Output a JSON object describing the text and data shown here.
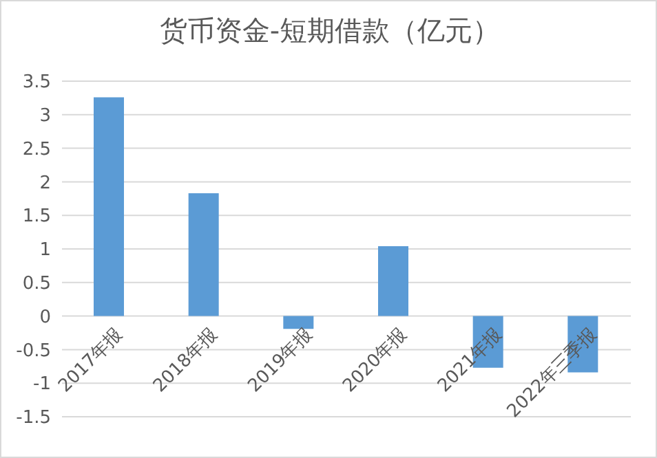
{
  "chart_data": {
    "type": "bar",
    "title": "货币资金-短期借款（亿元）",
    "categories": [
      "2017年报",
      "2018年报",
      "2019年报",
      "2020年报",
      "2021年报",
      "2022年三季报"
    ],
    "values": [
      3.26,
      1.83,
      -0.19,
      1.04,
      -0.77,
      -0.84
    ],
    "color": "#5b9bd5",
    "ylim": [
      -1.5,
      3.5
    ],
    "yticks": [
      -1.5,
      -1,
      -0.5,
      0,
      0.5,
      1,
      1.5,
      2,
      2.5,
      3,
      3.5
    ],
    "grid": "y"
  }
}
